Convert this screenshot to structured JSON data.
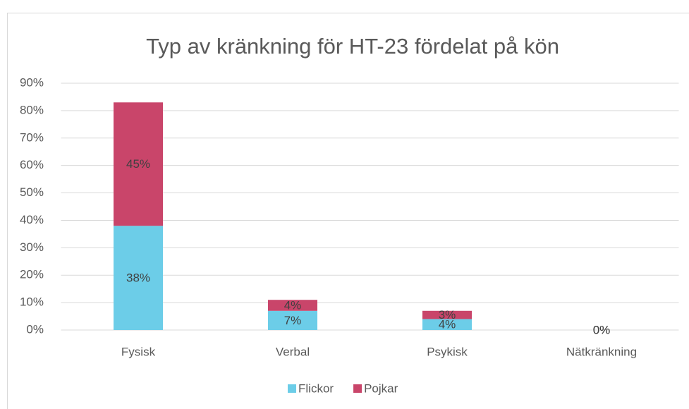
{
  "chart_data": {
    "type": "stacked_bar",
    "title": "Typ av kränkning för HT-23 fördelat på kön",
    "categories": [
      "Fysisk",
      "Verbal",
      "Psykisk",
      "Nätkränkning"
    ],
    "series": [
      {
        "name": "Flickor",
        "color": "#6ccde8",
        "values": [
          38,
          7,
          4,
          0
        ],
        "value_labels": [
          "38%",
          "7%",
          "4%",
          "0%"
        ]
      },
      {
        "name": "Pojkar",
        "color": "#c9456a",
        "values": [
          45,
          4,
          3,
          0
        ],
        "value_labels": [
          "45%",
          "4%",
          "3%",
          "0%"
        ]
      }
    ],
    "ylim": [
      0,
      90
    ],
    "yticks": [
      {
        "value": 0,
        "label": "0%"
      },
      {
        "value": 10,
        "label": "10%"
      },
      {
        "value": 20,
        "label": "20%"
      },
      {
        "value": 30,
        "label": "30%"
      },
      {
        "value": 40,
        "label": "40%"
      },
      {
        "value": 50,
        "label": "50%"
      },
      {
        "value": 60,
        "label": "60%"
      },
      {
        "value": 70,
        "label": "70%"
      },
      {
        "value": 80,
        "label": "80%"
      },
      {
        "value": 90,
        "label": "90%"
      }
    ],
    "grid": true,
    "legend": "bottom"
  }
}
